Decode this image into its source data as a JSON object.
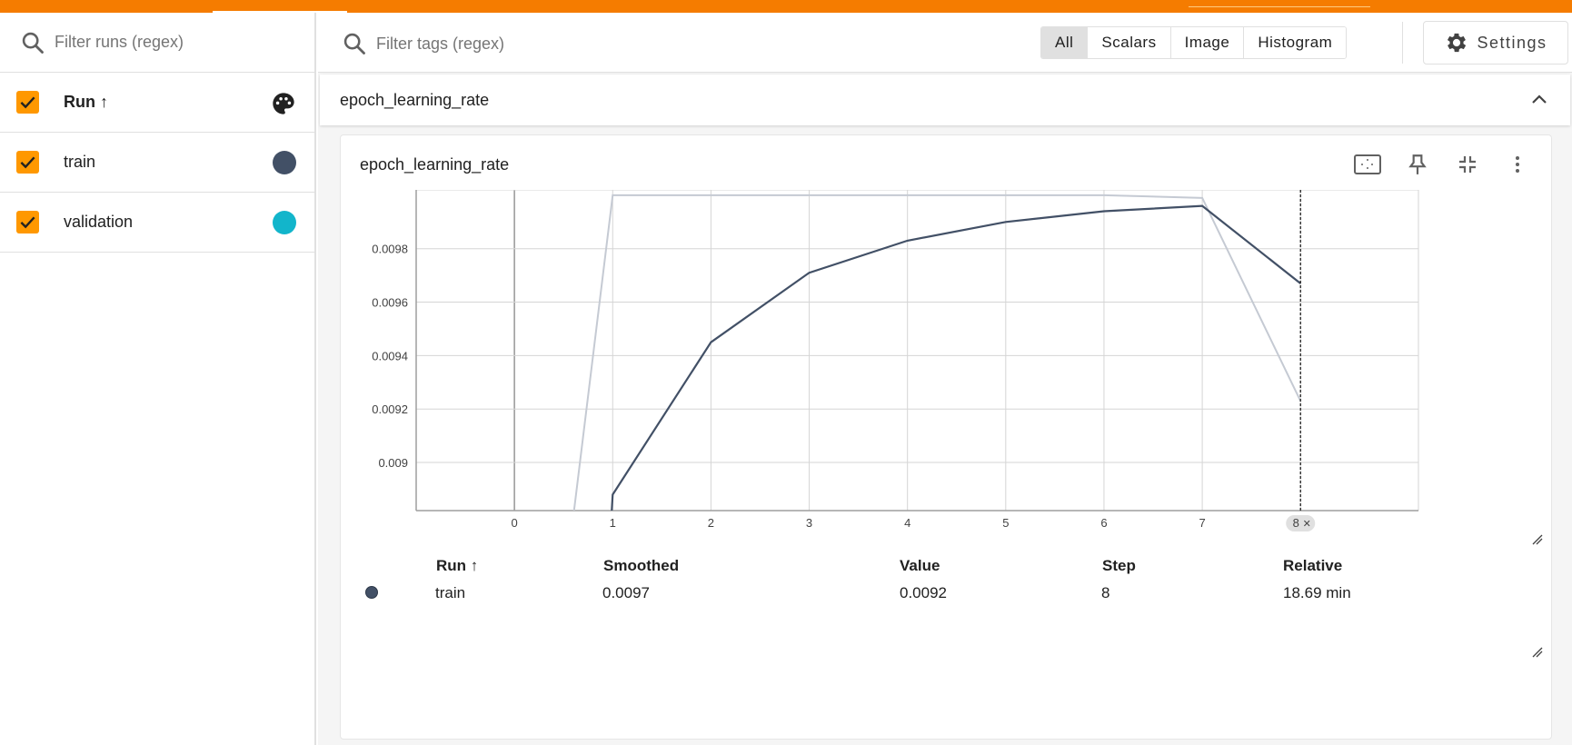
{
  "sidebar": {
    "filter_placeholder": "Filter runs (regex)",
    "header_label": "Run",
    "runs": [
      {
        "label": "train",
        "color": "#425066",
        "checked": true
      },
      {
        "label": "validation",
        "color": "#12b5cb",
        "checked": true
      }
    ]
  },
  "toolbar": {
    "filter_placeholder": "Filter tags (regex)",
    "types": [
      "All",
      "Scalars",
      "Image",
      "Histogram"
    ],
    "active_type": "All",
    "settings_label": "Settings"
  },
  "group": {
    "title": "epoch_learning_rate"
  },
  "card": {
    "title": "epoch_learning_rate",
    "chart_data": {
      "type": "line",
      "x_ticks": [
        "0",
        "1",
        "2",
        "3",
        "4",
        "5",
        "6",
        "7",
        "8"
      ],
      "y_ticks": [
        "0.009",
        "0.0092",
        "0.0094",
        "0.0096",
        "0.0098"
      ],
      "xlim": [
        -1,
        9.2
      ],
      "ylim": [
        0.00882,
        0.01002
      ],
      "cursor_step": "8",
      "series": [
        {
          "name": "train",
          "color": "#425066",
          "smoothed": [
            [
              0.94,
              0.0085
            ],
            [
              1,
              0.00888
            ],
            [
              2,
              0.00945
            ],
            [
              3,
              0.00971
            ],
            [
              4,
              0.00983
            ],
            [
              5,
              0.0099
            ],
            [
              6,
              0.00994
            ],
            [
              7,
              0.00996
            ],
            [
              8,
              0.00967
            ]
          ],
          "raw": [
            [
              0.6,
              0.0088
            ],
            [
              1,
              0.01
            ],
            [
              6,
              0.01
            ],
            [
              7,
              0.00999
            ],
            [
              8,
              0.00923
            ]
          ]
        }
      ]
    },
    "table": {
      "headers": {
        "run": "Run",
        "smoothed": "Smoothed",
        "value": "Value",
        "step": "Step",
        "relative": "Relative"
      },
      "rows": [
        {
          "color": "#425066",
          "run": "train",
          "smoothed": "0.0097",
          "value": "0.0092",
          "step": "8",
          "relative": "18.69 min"
        }
      ]
    }
  }
}
